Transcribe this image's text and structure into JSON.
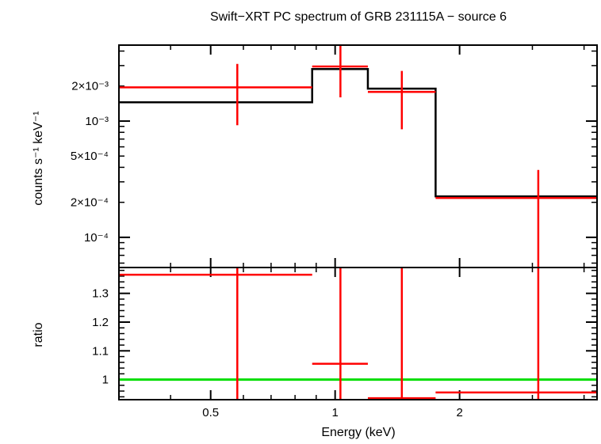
{
  "chart_data": [
    {
      "type": "line",
      "title": "Swift−XRT PC spectrum of GRB 231115A − source 6",
      "ylabel": "counts s⁻¹ keV⁻¹",
      "yscale": "log",
      "xscale": "log",
      "xlim": [
        0.3,
        4.3
      ],
      "ylim": [
        5.5e-05,
        0.0045
      ],
      "yticks": [
        {
          "value": 0.0001,
          "label": "10⁻⁴"
        },
        {
          "value": 0.0002,
          "label": "2×10⁻⁴"
        },
        {
          "value": 0.0005,
          "label": "5×10⁻⁴"
        },
        {
          "value": 0.001,
          "label": "10⁻³"
        },
        {
          "value": 0.002,
          "label": "2×10⁻³"
        }
      ],
      "model": {
        "color": "#000000",
        "x": [
          0.3,
          0.88,
          0.88,
          1.2,
          1.2,
          1.75,
          1.75,
          4.3
        ],
        "y": [
          0.00145,
          0.00145,
          0.0028,
          0.0028,
          0.0019,
          0.0019,
          0.000225,
          0.000225
        ]
      },
      "data": {
        "color": "#ff0000",
        "points": [
          {
            "xlo": 0.3,
            "xhi": 0.88,
            "x": 0.58,
            "y": 0.00195,
            "ylo": 0.00092,
            "yhi": 0.0031
          },
          {
            "xlo": 0.88,
            "xhi": 1.2,
            "x": 1.03,
            "y": 0.00295,
            "ylo": 0.0016,
            "yhi": 0.0045
          },
          {
            "xlo": 1.2,
            "xhi": 1.75,
            "x": 1.45,
            "y": 0.00178,
            "ylo": 0.00085,
            "yhi": 0.0027
          },
          {
            "xlo": 1.75,
            "xhi": 4.3,
            "x": 3.1,
            "y": 0.000218,
            "ylo": 5.5e-05,
            "yhi": 0.00038
          }
        ]
      }
    },
    {
      "type": "line",
      "xlabel": "Energy (keV)",
      "ylabel": "ratio",
      "xscale": "log",
      "xlim": [
        0.3,
        4.3
      ],
      "ylim": [
        0.93,
        1.39
      ],
      "xticks": [
        {
          "value": 0.5,
          "label": "0.5"
        },
        {
          "value": 1,
          "label": "1"
        },
        {
          "value": 2,
          "label": "2"
        }
      ],
      "yticks": [
        {
          "value": 1,
          "label": "1"
        },
        {
          "value": 1.1,
          "label": "1.1"
        },
        {
          "value": 1.2,
          "label": "1.2"
        },
        {
          "value": 1.3,
          "label": "1.3"
        }
      ],
      "reference_line": {
        "y": 1,
        "color": "#00dd00"
      },
      "data": {
        "color": "#ff0000",
        "points": [
          {
            "xlo": 0.3,
            "xhi": 0.88,
            "x": 0.58,
            "y": 1.365,
            "ylo": 0.93,
            "yhi": 1.39
          },
          {
            "xlo": 0.88,
            "xhi": 1.2,
            "x": 1.03,
            "y": 1.055,
            "ylo": 0.93,
            "yhi": 1.39
          },
          {
            "xlo": 1.2,
            "xhi": 1.75,
            "x": 1.45,
            "y": 0.935,
            "ylo": 0.93,
            "yhi": 1.39
          },
          {
            "xlo": 1.75,
            "xhi": 4.3,
            "x": 3.1,
            "y": 0.955,
            "ylo": 0.93,
            "yhi": 1.39
          }
        ]
      }
    }
  ]
}
